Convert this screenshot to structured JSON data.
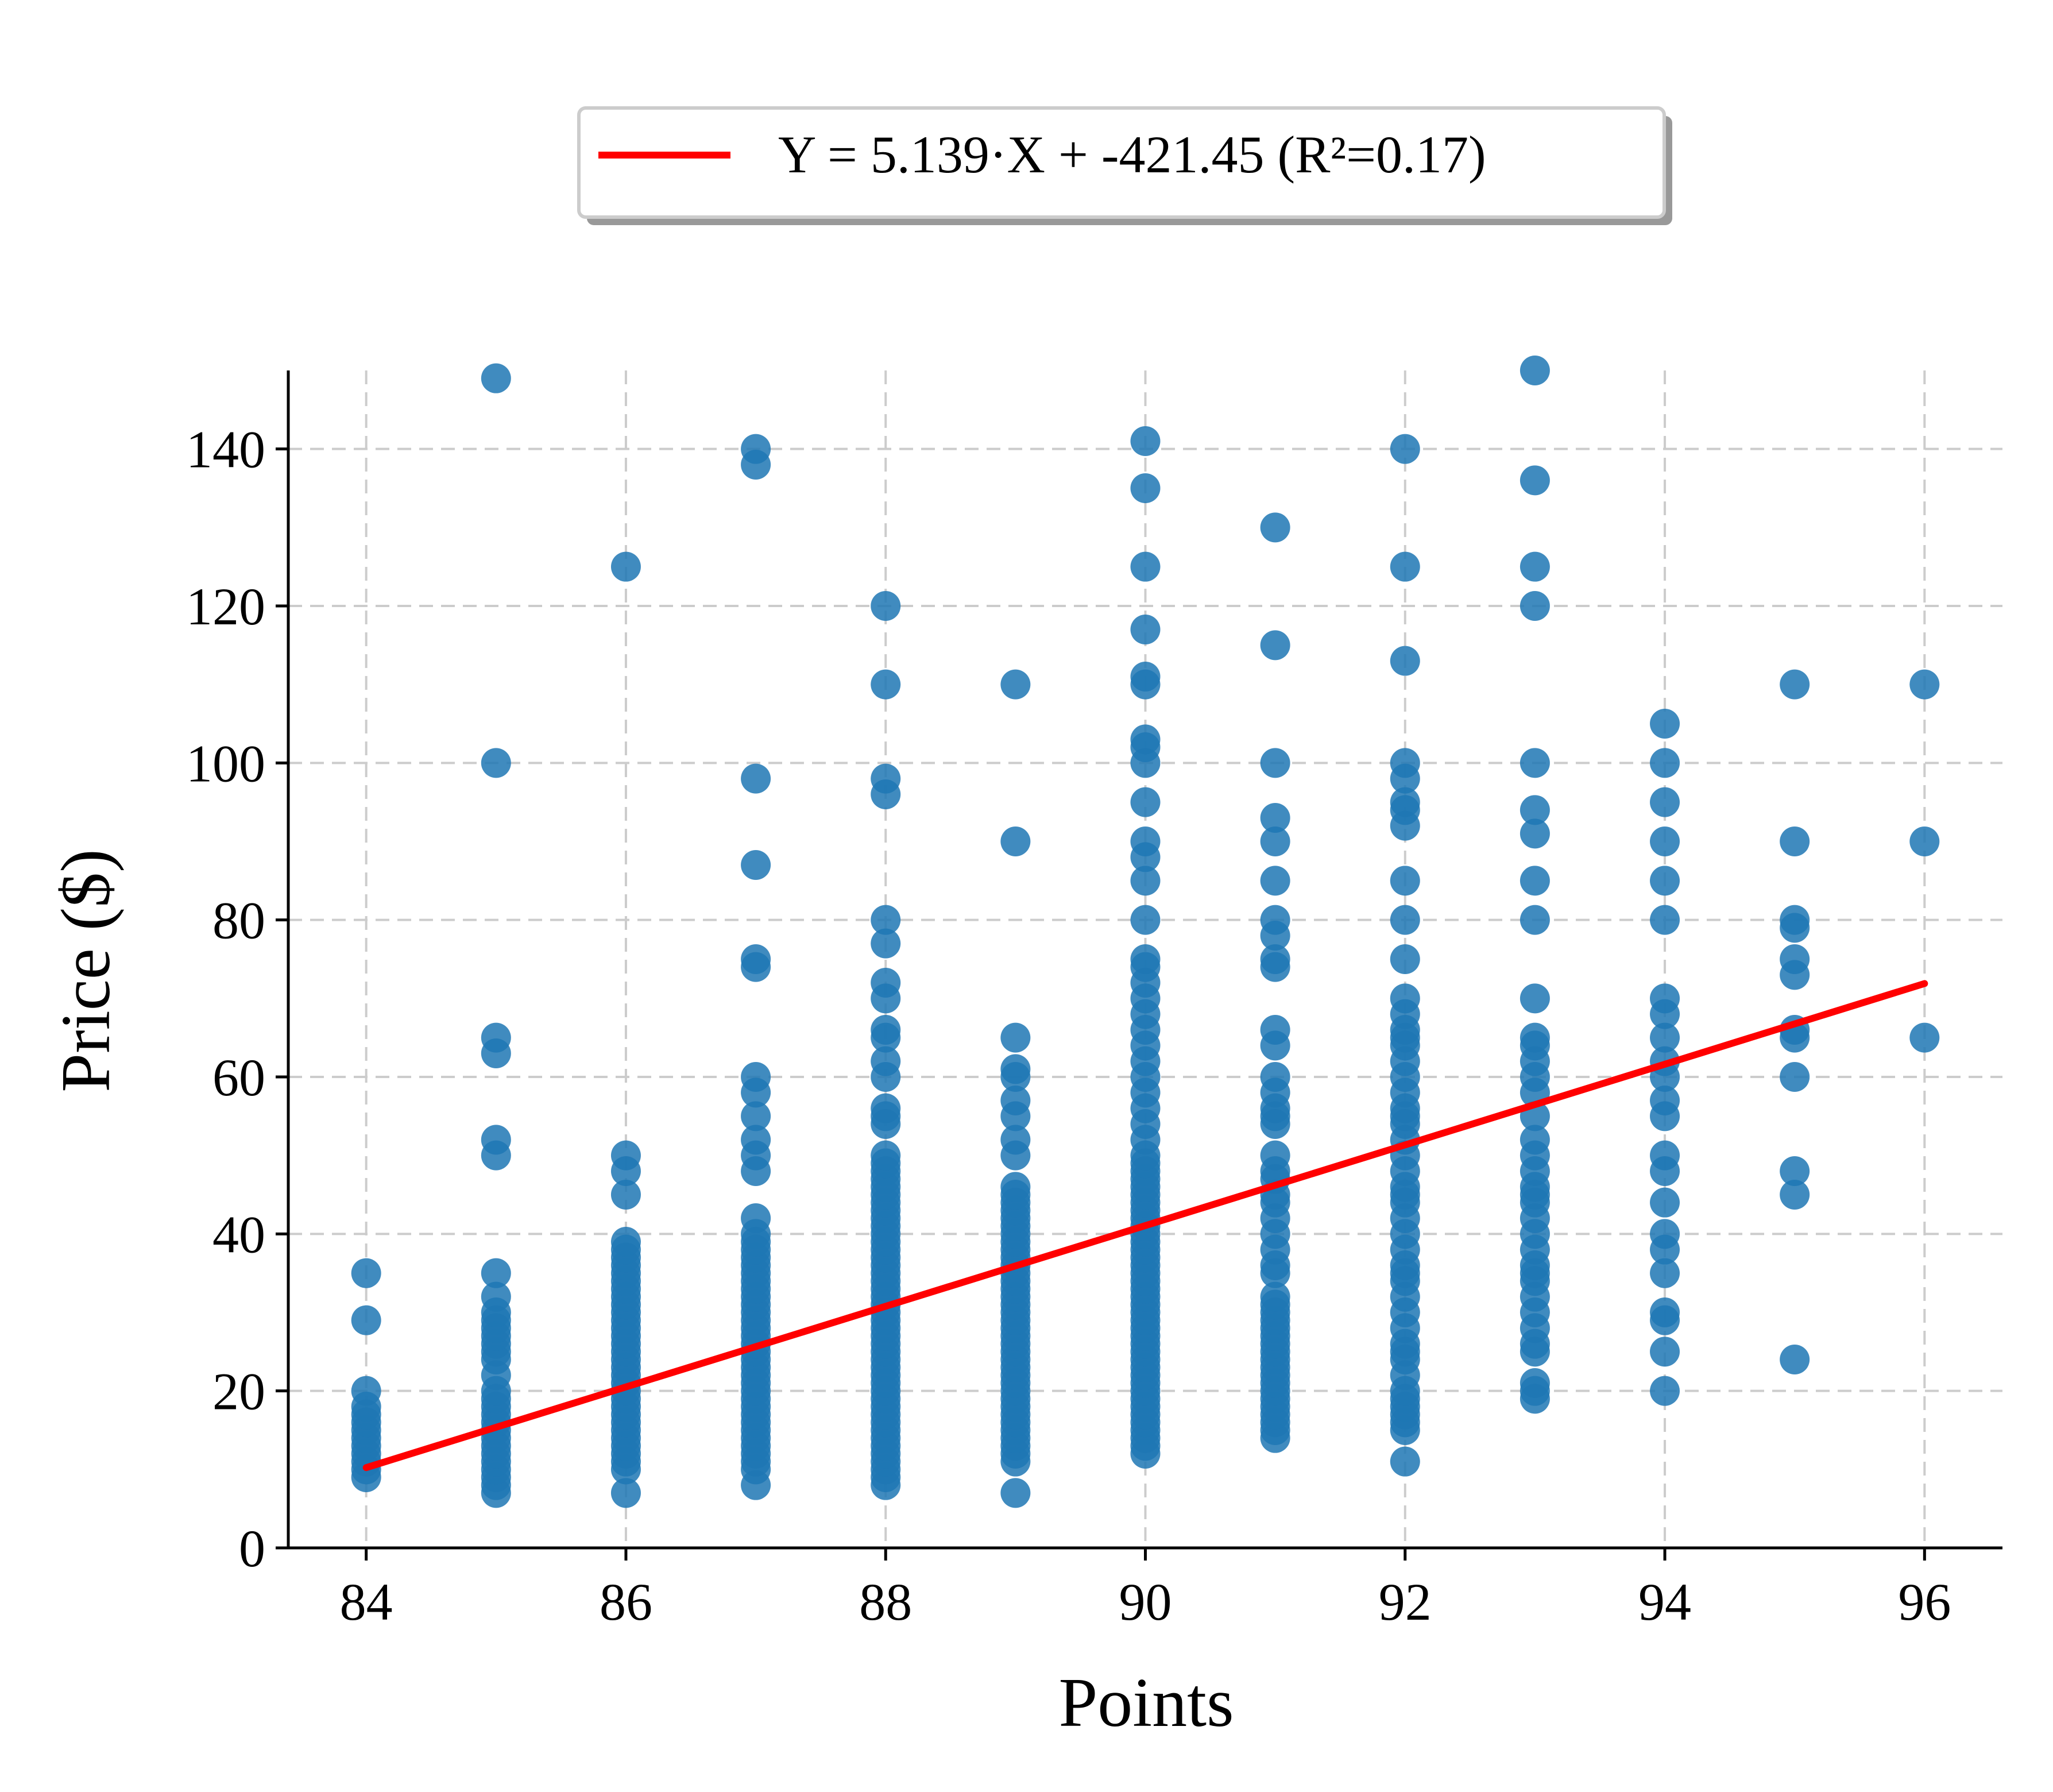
{
  "chart_data": {
    "type": "scatter",
    "title": "",
    "xlabel": "Points",
    "ylabel": "Price ($)",
    "xlim": [
      83.4,
      96.6
    ],
    "ylim": [
      0,
      150
    ],
    "xticks": [
      84,
      86,
      88,
      90,
      92,
      94,
      96
    ],
    "yticks": [
      0,
      20,
      40,
      60,
      80,
      100,
      120,
      140
    ],
    "grid": true,
    "legend_position": "top-center",
    "colors": {
      "points": "#1f77b4",
      "fit": "#ff0000",
      "grid": "#cccccc",
      "axis": "#000000"
    },
    "fit_line": {
      "label": "Y = 5.139·X + -421.45 (R²=0.17)",
      "slope": 5.139,
      "intercept": -421.45,
      "x_range": [
        84,
        96
      ]
    },
    "series": [
      {
        "x": 84,
        "y": [
          9,
          10,
          11,
          12,
          13,
          14,
          15,
          16,
          17,
          18,
          20,
          29,
          35
        ]
      },
      {
        "x": 85,
        "y": [
          7,
          8,
          9,
          10,
          11,
          12,
          13,
          14,
          15,
          16,
          17,
          18,
          19,
          20,
          22,
          24,
          25,
          26,
          27,
          28,
          29,
          30,
          32,
          35,
          50,
          52,
          63,
          65,
          100,
          149
        ]
      },
      {
        "x": 86,
        "y": [
          7,
          10,
          11,
          12,
          13,
          14,
          15,
          16,
          17,
          18,
          19,
          20,
          21,
          22,
          23,
          24,
          25,
          26,
          27,
          28,
          29,
          30,
          31,
          32,
          33,
          34,
          35,
          36,
          37,
          38,
          39,
          45,
          48,
          50,
          125
        ]
      },
      {
        "x": 87,
        "y": [
          8,
          10,
          11,
          12,
          13,
          14,
          15,
          16,
          17,
          18,
          19,
          20,
          21,
          22,
          23,
          24,
          25,
          26,
          27,
          28,
          29,
          30,
          31,
          32,
          33,
          34,
          35,
          36,
          37,
          38,
          39,
          40,
          42,
          48,
          50,
          52,
          55,
          58,
          60,
          74,
          75,
          87,
          98,
          138,
          140
        ]
      },
      {
        "x": 88,
        "y": [
          8,
          9,
          10,
          11,
          12,
          13,
          14,
          15,
          16,
          17,
          18,
          19,
          20,
          21,
          22,
          23,
          24,
          25,
          26,
          27,
          28,
          29,
          30,
          31,
          32,
          33,
          34,
          35,
          36,
          37,
          38,
          39,
          40,
          41,
          42,
          43,
          44,
          45,
          46,
          47,
          48,
          49,
          50,
          54,
          55,
          56,
          60,
          62,
          65,
          66,
          70,
          72,
          77,
          80,
          96,
          98,
          110,
          120
        ]
      },
      {
        "x": 89,
        "y": [
          7,
          11,
          12,
          13,
          14,
          15,
          16,
          17,
          18,
          19,
          20,
          21,
          22,
          23,
          24,
          25,
          26,
          27,
          28,
          29,
          30,
          31,
          32,
          33,
          34,
          35,
          36,
          37,
          38,
          39,
          40,
          41,
          42,
          43,
          44,
          45,
          46,
          50,
          52,
          55,
          57,
          60,
          61,
          65,
          90,
          110
        ]
      },
      {
        "x": 90,
        "y": [
          12,
          13,
          14,
          15,
          16,
          17,
          18,
          19,
          20,
          21,
          22,
          23,
          24,
          25,
          26,
          27,
          28,
          29,
          30,
          31,
          32,
          33,
          34,
          35,
          36,
          37,
          38,
          39,
          40,
          41,
          42,
          43,
          44,
          45,
          46,
          47,
          48,
          49,
          50,
          52,
          54,
          56,
          58,
          60,
          62,
          64,
          66,
          68,
          70,
          72,
          74,
          75,
          80,
          85,
          88,
          90,
          95,
          100,
          102,
          103,
          110,
          111,
          117,
          125,
          135,
          141
        ]
      },
      {
        "x": 91,
        "y": [
          14,
          15,
          16,
          17,
          18,
          19,
          20,
          21,
          22,
          23,
          24,
          25,
          26,
          27,
          28,
          29,
          30,
          31,
          32,
          35,
          36,
          38,
          40,
          42,
          44,
          45,
          47,
          48,
          50,
          54,
          55,
          56,
          58,
          60,
          64,
          66,
          74,
          75,
          78,
          80,
          85,
          90,
          93,
          100,
          115,
          130
        ]
      },
      {
        "x": 92,
        "y": [
          11,
          15,
          16,
          17,
          18,
          19,
          20,
          22,
          24,
          25,
          26,
          28,
          30,
          32,
          34,
          35,
          36,
          38,
          40,
          42,
          44,
          45,
          46,
          48,
          50,
          52,
          54,
          55,
          56,
          58,
          60,
          62,
          64,
          65,
          66,
          68,
          70,
          75,
          80,
          85,
          92,
          94,
          95,
          98,
          100,
          113,
          125,
          140
        ]
      },
      {
        "x": 93,
        "y": [
          19,
          20,
          21,
          25,
          26,
          28,
          30,
          32,
          34,
          35,
          36,
          38,
          40,
          42,
          44,
          45,
          46,
          48,
          50,
          52,
          55,
          58,
          60,
          62,
          64,
          65,
          70,
          80,
          85,
          91,
          94,
          100,
          120,
          125,
          136,
          150
        ]
      },
      {
        "x": 94,
        "y": [
          20,
          25,
          29,
          30,
          35,
          38,
          40,
          44,
          48,
          50,
          55,
          57,
          60,
          62,
          65,
          68,
          70,
          80,
          85,
          90,
          95,
          100,
          105
        ]
      },
      {
        "x": 95,
        "y": [
          24,
          45,
          48,
          60,
          65,
          66,
          73,
          75,
          79,
          80,
          90,
          110
        ]
      },
      {
        "x": 96,
        "y": [
          65,
          90,
          110
        ]
      }
    ]
  }
}
